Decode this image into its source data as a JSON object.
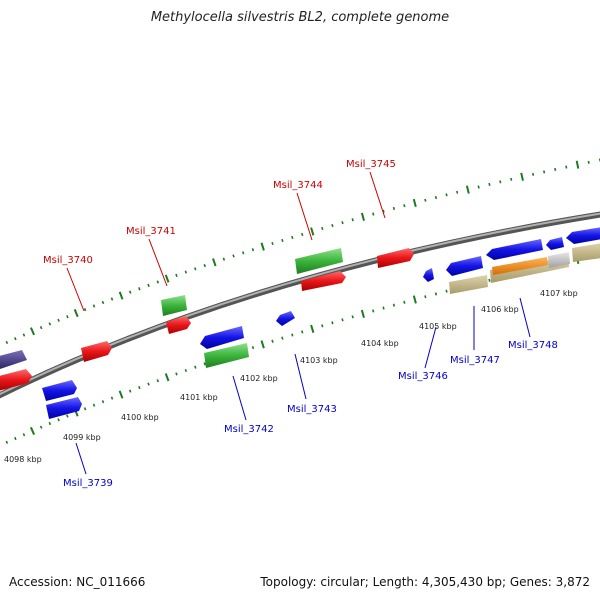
{
  "title": "Methylocella silvestris BL2, complete genome",
  "footer": {
    "accession": "Accession: NC_011666",
    "stats": "Topology: circular; Length: 4,305,430 bp; Genes: 3,872"
  },
  "colors": {
    "backbone": "#8c8c8c",
    "ticks": "#1e7a1e",
    "forward_cds": "#e8161a",
    "reverse_cds": "#1414e6",
    "rna": "#3bb53b",
    "other": "#4a3d8a",
    "tan": "#c6b98a",
    "orange": "#f28c1a",
    "grey": "#c8c8c8",
    "forward_label": "#cc0000",
    "reverse_label": "#0000cc"
  },
  "scale_labels": [
    "4098 kbp",
    "4099 kbp",
    "4100 kbp",
    "4101 kbp",
    "4102 kbp",
    "4103 kbp",
    "4104 kbp",
    "4105 kbp",
    "4106 kbp",
    "4107 kbp"
  ],
  "forward_genes": [
    {
      "label": "Msil_3740"
    },
    {
      "label": "Msil_3741"
    },
    {
      "label": "Msil_3744"
    },
    {
      "label": "Msil_3745"
    }
  ],
  "reverse_genes": [
    {
      "label": "Msil_3739"
    },
    {
      "label": "Msil_3742"
    },
    {
      "label": "Msil_3743"
    },
    {
      "label": "Msil_3746"
    },
    {
      "label": "Msil_3747"
    },
    {
      "label": "Msil_3748"
    }
  ]
}
